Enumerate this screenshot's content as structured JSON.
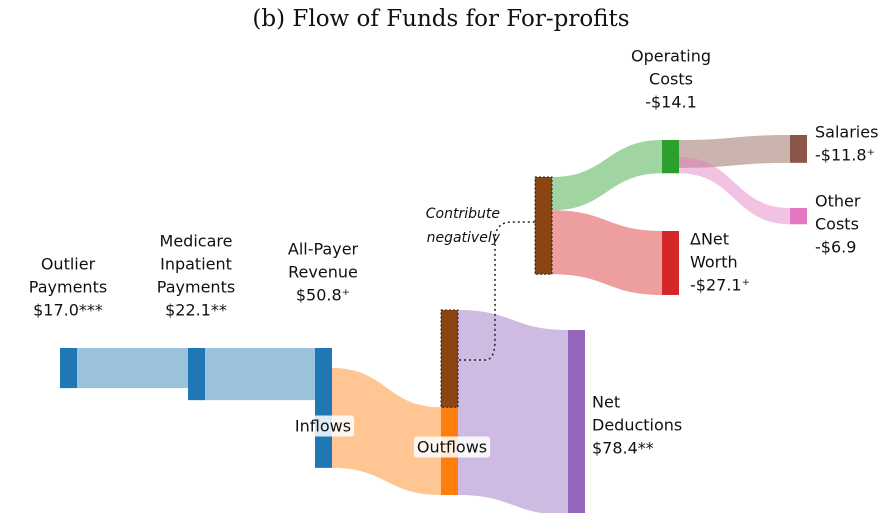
{
  "chart_data": {
    "type": "sankey",
    "title": "(b) Flow of Funds for For-profits",
    "nodes": [
      {
        "name": [
          "Outlier",
          "Payments"
        ],
        "value": 17.0,
        "value_label": "$17.0***",
        "color": "#1f77b4"
      },
      {
        "name": [
          "Medicare",
          "Inpatient",
          "Payments"
        ],
        "value": 22.1,
        "value_label": "$22.1**",
        "color": "#1f77b4"
      },
      {
        "name": [
          "All-Payer",
          "Revenue"
        ],
        "value": 50.8,
        "value_label": "$50.8⁺",
        "color": "#1f77b4"
      },
      {
        "name": [
          "Net",
          "Deductions"
        ],
        "value": 78.4,
        "value_label": "$78.4**",
        "color": "#9467bd"
      },
      {
        "name": [
          "Operating",
          "Costs"
        ],
        "value": -14.1,
        "value_label": "-$14.1",
        "color": "#2ca02c"
      },
      {
        "name": [
          "ΔNet",
          "Worth"
        ],
        "value": -27.1,
        "value_label": "-$27.1⁺",
        "color": "#d62728"
      },
      {
        "name": [
          "Salaries"
        ],
        "value": -11.8,
        "value_label": "-$11.8⁺",
        "color": "#8c564b"
      },
      {
        "name": [
          "Other",
          "Costs"
        ],
        "value": -6.9,
        "value_label": "-$6.9",
        "color": "#e377c2"
      }
    ],
    "inflows_label": "Inflows",
    "outflows_label": "Outflows",
    "outflows_color": "#ff7f0e",
    "negative_color": "#8b4513",
    "annotation": [
      "Contribute",
      "negatively"
    ]
  }
}
